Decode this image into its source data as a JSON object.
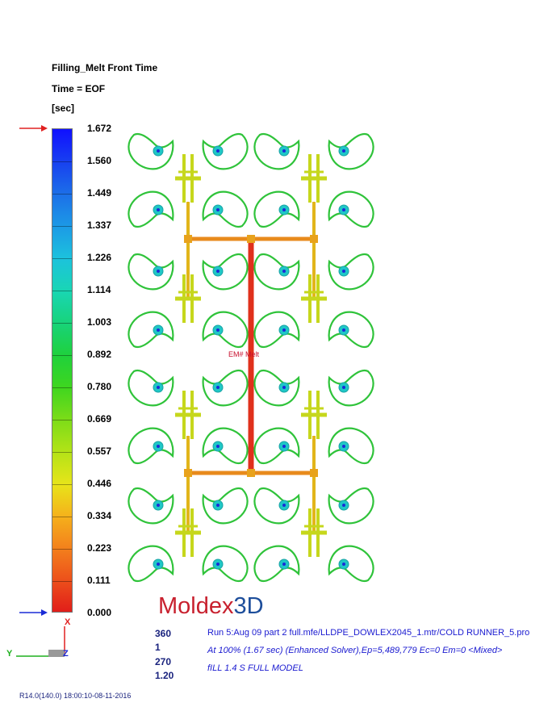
{
  "header": {
    "title": "Filling_Melt Front Time",
    "time_label": "Time = EOF",
    "unit": "[sec]"
  },
  "colorbar": {
    "ticks": [
      "1.672",
      "1.560",
      "1.449",
      "1.337",
      "1.226",
      "1.114",
      "1.003",
      "0.892",
      "0.780",
      "0.669",
      "0.557",
      "0.446",
      "0.334",
      "0.223",
      "0.111",
      "0.000"
    ],
    "colors": [
      "#1010ff",
      "#1840f0",
      "#1c6fe8",
      "#1c9ae6",
      "#1cc2dd",
      "#19d6b4",
      "#18d37a",
      "#1fd13c",
      "#3fd61f",
      "#7ddc18",
      "#b4e317",
      "#e8e41a",
      "#f5b01b",
      "#f37f1c",
      "#ec4e1b",
      "#e01a1a"
    ],
    "max_arrow_color": "#e02020",
    "min_arrow_color": "#1a2bd6"
  },
  "model": {
    "inlet_label": "EM#  Melt"
  },
  "logo": {
    "text_main": "Moldex",
    "text_3d": "3D"
  },
  "stats": [
    "360",
    "1",
    "270",
    "1.20"
  ],
  "info": {
    "run_line": "Run 5:Aug 09 part 2 full.mfe/LLDPE_DOWLEX2045_1.mtr/COLD RUNNER_5.pro",
    "solver_line": "At 100% (1.67 sec) (Enhanced Solver),Ep=5,489,779 Ec=0 Em=0  <Mixed>",
    "model_line": "fILL 1.4 S FULL MODEL"
  },
  "axes": {
    "x": "X",
    "y": "Y",
    "z": "Z"
  },
  "footer": "R14.0(140.0) 18:00:10-08-11-2016"
}
